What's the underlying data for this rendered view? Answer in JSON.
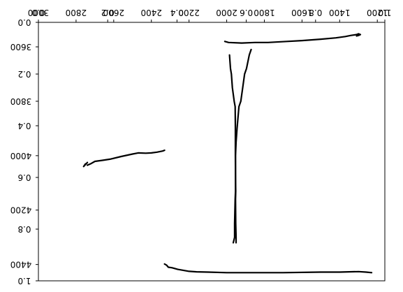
{
  "chart_data": [
    {
      "type": "line",
      "layer": "mirrored-overlay",
      "x_ticks_top": [
        "0.0",
        "0.2",
        "0.4",
        "0.6",
        "0.8",
        "1.0"
      ],
      "y_ticks_left": [
        "0.0",
        "0.2",
        "0.4",
        "0.6",
        "0.8",
        "1.0"
      ],
      "xlim": [
        0,
        1
      ],
      "ylim": [
        0,
        1
      ]
    },
    {
      "type": "line",
      "layer": "trajectory",
      "x_ticks_top": [
        "1200",
        "1400",
        "1600",
        "1800",
        "2000",
        "2200",
        "2400",
        "2600",
        "2800",
        "3000"
      ],
      "x_tick_values": [
        1200,
        1400,
        1600,
        1800,
        2000,
        2200,
        2400,
        2600,
        2800,
        3000
      ],
      "y_ticks_left": [
        "3600",
        "3800",
        "4000",
        "4200",
        "4400"
      ],
      "y_tick_values": [
        3600,
        3800,
        4000,
        4200,
        4400
      ],
      "xlim": [
        3000,
        1160
      ],
      "ylim": [
        4460,
        3510
      ],
      "color": "#000000",
      "series": [
        {
          "x": [
            2010,
            1990,
            1920,
            1850,
            1780,
            1680,
            1600,
            1500,
            1420,
            1370,
            1340,
            1310,
            1300,
            1290,
            1300,
            1310
          ],
          "y": [
            3580,
            3584,
            3586,
            3584,
            3584,
            3580,
            3577,
            3572,
            3567,
            3562,
            3558,
            3555,
            3552,
            3555,
            3558,
            3560
          ]
        },
        {
          "x": [
            1870,
            1880,
            1895,
            1905,
            1915,
            1925,
            1935,
            1945,
            1950,
            1953,
            1953,
            1953,
            1955,
            1958,
            1958,
            1965
          ],
          "y": [
            3610,
            3630,
            3680,
            3700,
            3750,
            3800,
            3820,
            3900,
            3950,
            4000,
            4080,
            4130,
            4160,
            4250,
            4300,
            4320
          ]
        },
        {
          "x": [
            1950,
            1950,
            1952,
            1953,
            1952,
            1953,
            1954,
            1954,
            1954,
            1955,
            1960,
            1970,
            1975,
            1980,
            1985
          ],
          "y": [
            4320,
            4300,
            4250,
            4160,
            4130,
            4080,
            4000,
            3950,
            3900,
            3820,
            3800,
            3750,
            3700,
            3680,
            3630
          ]
        },
        {
          "x": [
            2740,
            2720,
            2700,
            2660,
            2620,
            2560,
            2500,
            2470,
            2430,
            2400,
            2370,
            2340,
            2330
          ],
          "y": [
            4035,
            4029,
            4021,
            4017,
            4013,
            4003,
            3994,
            3990,
            3991,
            3990,
            3987,
            3983,
            3980
          ]
        },
        {
          "x": [
            2750,
            2760,
            2740
          ],
          "y": [
            4030,
            4040,
            4025
          ]
        },
        {
          "x": [
            2330,
            2320,
            2310,
            2290,
            2260,
            2200,
            2160,
            2100,
            2000,
            1900,
            1700,
            1500,
            1400,
            1350,
            1300,
            1260,
            1230
          ],
          "y": [
            4398,
            4402,
            4410,
            4412,
            4418,
            4425,
            4427,
            4428,
            4430,
            4430,
            4430,
            4428,
            4428,
            4427,
            4426,
            4428,
            4430
          ]
        }
      ]
    }
  ]
}
